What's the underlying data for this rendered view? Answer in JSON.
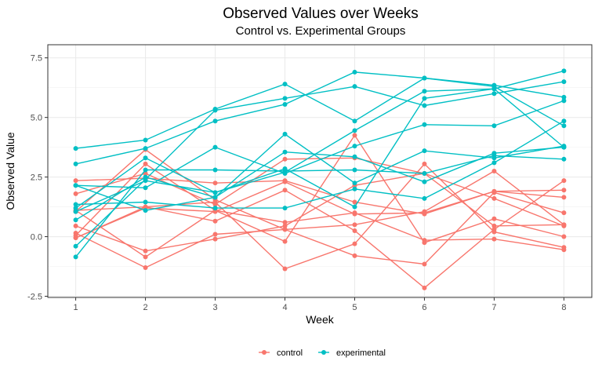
{
  "chart_data": {
    "type": "line",
    "title": "Observed Values over Weeks",
    "subtitle": "Control vs. Experimental Groups",
    "xlabel": "Week",
    "ylabel": "Observed Value",
    "x": [
      1,
      2,
      3,
      4,
      5,
      6,
      7,
      8
    ],
    "xlim": [
      0.6,
      8.4
    ],
    "ylim": [
      -2.55,
      8.05
    ],
    "yticks": [
      -2.5,
      0.0,
      2.5,
      5.0,
      7.5
    ],
    "ytick_labels": [
      "-2.5",
      "0.0",
      "2.5",
      "5.0",
      "7.5"
    ],
    "xtick_labels": [
      "1",
      "2",
      "3",
      "4",
      "5",
      "6",
      "7",
      "8"
    ],
    "grid": true,
    "legend_position": "bottom",
    "colors": {
      "control": "#F8766D",
      "experimental": "#00BFC4"
    },
    "series": [
      {
        "name": "control",
        "values": [
          1.05,
          3.65,
          1.55,
          0.3,
          0.5,
          1.05,
          2.75,
          0.5
        ]
      },
      {
        "name": "control",
        "values": [
          2.35,
          2.45,
          2.25,
          2.35,
          1.45,
          0.95,
          1.9,
          1.65
        ]
      },
      {
        "name": "control",
        "values": [
          1.8,
          2.65,
          1.35,
          3.25,
          3.3,
          2.65,
          1.6,
          0.45
        ]
      },
      {
        "name": "control",
        "values": [
          0.45,
          -0.6,
          -0.1,
          0.45,
          2.15,
          2.65,
          0.45,
          0.5
        ]
      },
      {
        "name": "control",
        "values": [
          0.15,
          -1.3,
          0.1,
          0.3,
          -0.8,
          -1.15,
          1.85,
          1.0
        ]
      },
      {
        "name": "control",
        "values": [
          -0.05,
          1.25,
          1.45,
          -1.35,
          -0.3,
          3.05,
          0.2,
          -0.45
        ]
      },
      {
        "name": "control",
        "values": [
          1.1,
          1.25,
          0.65,
          1.95,
          0.25,
          -2.15,
          0.3,
          2.35
        ]
      },
      {
        "name": "control",
        "values": [
          0.05,
          3.05,
          1.1,
          0.6,
          1.0,
          -0.15,
          -0.1,
          -0.55
        ]
      },
      {
        "name": "control",
        "values": [
          -0.05,
          1.2,
          1.05,
          2.3,
          0.95,
          1.0,
          1.9,
          1.95
        ]
      },
      {
        "name": "control",
        "values": [
          1.1,
          -0.85,
          1.1,
          -0.2,
          4.25,
          -0.25,
          0.75,
          0.0
        ]
      },
      {
        "name": "experimental",
        "values": [
          3.7,
          4.05,
          5.35,
          6.4,
          4.85,
          6.65,
          6.3,
          4.65
        ]
      },
      {
        "name": "experimental",
        "values": [
          3.05,
          3.7,
          4.85,
          5.55,
          6.9,
          6.65,
          6.35,
          5.85
        ]
      },
      {
        "name": "experimental",
        "values": [
          2.15,
          2.05,
          3.75,
          2.65,
          3.8,
          4.7,
          4.65,
          5.7
        ]
      },
      {
        "name": "experimental",
        "values": [
          -0.4,
          2.4,
          5.3,
          5.8,
          6.3,
          5.5,
          6.0,
          6.5
        ]
      },
      {
        "name": "experimental",
        "values": [
          1.35,
          1.45,
          1.2,
          1.2,
          2.0,
          1.6,
          3.1,
          4.85
        ]
      },
      {
        "name": "experimental",
        "values": [
          -0.85,
          2.8,
          2.8,
          2.75,
          2.8,
          2.65,
          3.4,
          3.25
        ]
      },
      {
        "name": "experimental",
        "values": [
          0.7,
          2.5,
          1.65,
          3.55,
          3.35,
          2.3,
          3.5,
          3.75
        ]
      },
      {
        "name": "experimental",
        "values": [
          1.05,
          2.35,
          1.85,
          2.85,
          1.25,
          5.8,
          6.2,
          6.95
        ]
      },
      {
        "name": "experimental",
        "values": [
          1.2,
          3.3,
          1.85,
          2.7,
          4.45,
          6.1,
          6.2,
          3.75
        ]
      },
      {
        "name": "experimental",
        "values": [
          2.15,
          1.1,
          1.65,
          4.3,
          2.25,
          3.6,
          3.3,
          3.8
        ]
      }
    ],
    "legend": [
      {
        "label": "control",
        "key": "control"
      },
      {
        "label": "experimental",
        "key": "experimental"
      }
    ]
  }
}
